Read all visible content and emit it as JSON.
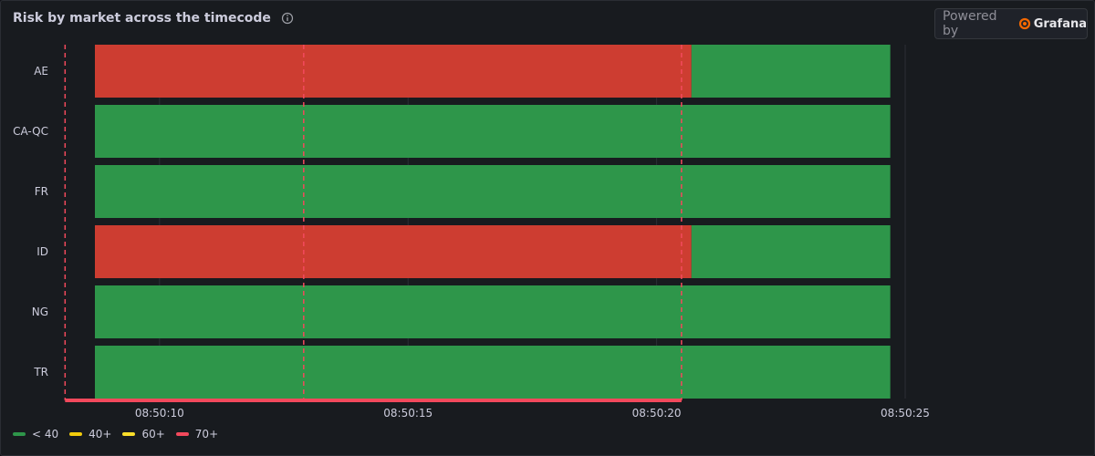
{
  "panel": {
    "title": "Risk by market across the timecode",
    "powered_by": "Powered by",
    "brand": "Grafana"
  },
  "colors": {
    "ok": "#2e964a",
    "risk": "#cd3d31",
    "annotation": "#f2495c",
    "brand_orange": "#f46800"
  },
  "chart_data": {
    "type": "state-timeline",
    "title": "Risk by market across the timecode",
    "x_range": [
      "08:50:08.7",
      "08:50:25"
    ],
    "x_ticks": [
      "08:50:10",
      "08:50:15",
      "08:50:20",
      "08:50:25"
    ],
    "categories": [
      "AE",
      "CA-QC",
      "FR",
      "ID",
      "NG",
      "TR"
    ],
    "rows": [
      {
        "name": "AE",
        "segments": [
          {
            "start": "08:50:08.7",
            "end": "08:50:20.7",
            "state": "70+"
          },
          {
            "start": "08:50:20.7",
            "end": "08:50:24.7",
            "state": "< 40"
          }
        ]
      },
      {
        "name": "CA-QC",
        "segments": [
          {
            "start": "08:50:08.7",
            "end": "08:50:24.7",
            "state": "< 40"
          }
        ]
      },
      {
        "name": "FR",
        "segments": [
          {
            "start": "08:50:08.7",
            "end": "08:50:24.7",
            "state": "< 40"
          }
        ]
      },
      {
        "name": "ID",
        "segments": [
          {
            "start": "08:50:08.7",
            "end": "08:50:20.7",
            "state": "70+"
          },
          {
            "start": "08:50:20.7",
            "end": "08:50:24.7",
            "state": "< 40"
          }
        ]
      },
      {
        "name": "NG",
        "segments": [
          {
            "start": "08:50:08.7",
            "end": "08:50:24.7",
            "state": "< 40"
          }
        ]
      },
      {
        "name": "TR",
        "segments": [
          {
            "start": "08:50:08.7",
            "end": "08:50:24.7",
            "state": "< 40"
          }
        ]
      }
    ],
    "annotations": [
      "08:50:08.1",
      "08:50:12.9",
      "08:50:20.5"
    ],
    "annotation_region": [
      "08:50:08.1",
      "08:50:20.5"
    ],
    "legend": [
      {
        "label": "< 40",
        "color": "#2e964a"
      },
      {
        "label": "40+",
        "color": "#f2cc0c"
      },
      {
        "label": "60+",
        "color": "#fade2a"
      },
      {
        "label": "70+",
        "color": "#f2495c"
      }
    ],
    "legend_placement": "bottom-left",
    "grid": true
  }
}
